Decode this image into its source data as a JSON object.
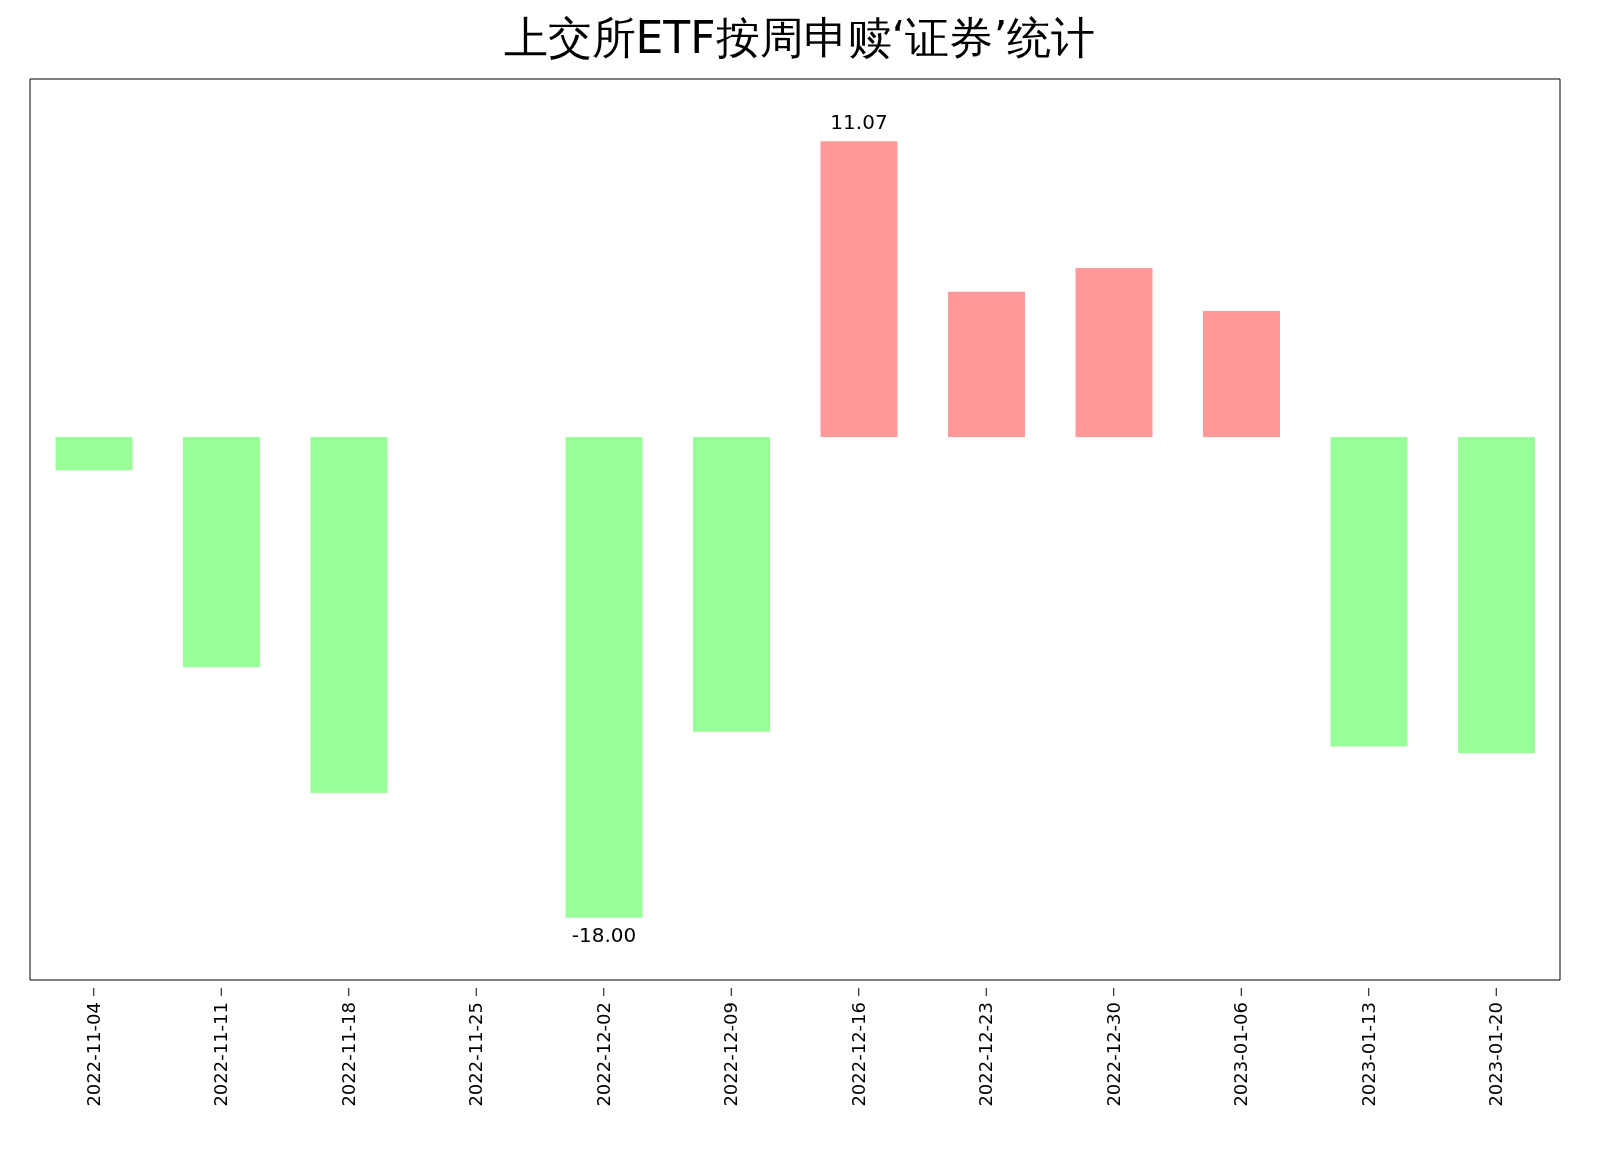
{
  "chart_data": {
    "type": "bar",
    "title": "上交所ETF按周申赎‘证券’统计",
    "categories": [
      "2022-11-04",
      "2022-11-11",
      "2022-11-18",
      "2022-11-25",
      "2022-12-02",
      "2022-12-09",
      "2022-12-16",
      "2022-12-23",
      "2022-12-30",
      "2023-01-06",
      "2023-01-13",
      "2023-01-20"
    ],
    "values": [
      -1.25,
      -8.62,
      -13.33,
      0,
      -18.0,
      -11.03,
      11.07,
      5.43,
      6.32,
      4.71,
      -11.59,
      -11.84
    ],
    "colors": [
      "#99ff99",
      "#99ff99",
      "#99ff99",
      "#99ff99",
      "#99ff99",
      "#99ff99",
      "#ff9999",
      "#ff9999",
      "#ff9999",
      "#ff9999",
      "#99ff99",
      "#99ff99"
    ],
    "value_labels": [
      null,
      null,
      null,
      null,
      "-18.00",
      null,
      "11.07",
      null,
      null,
      null,
      null,
      null
    ],
    "tick_labels": "x"
  }
}
